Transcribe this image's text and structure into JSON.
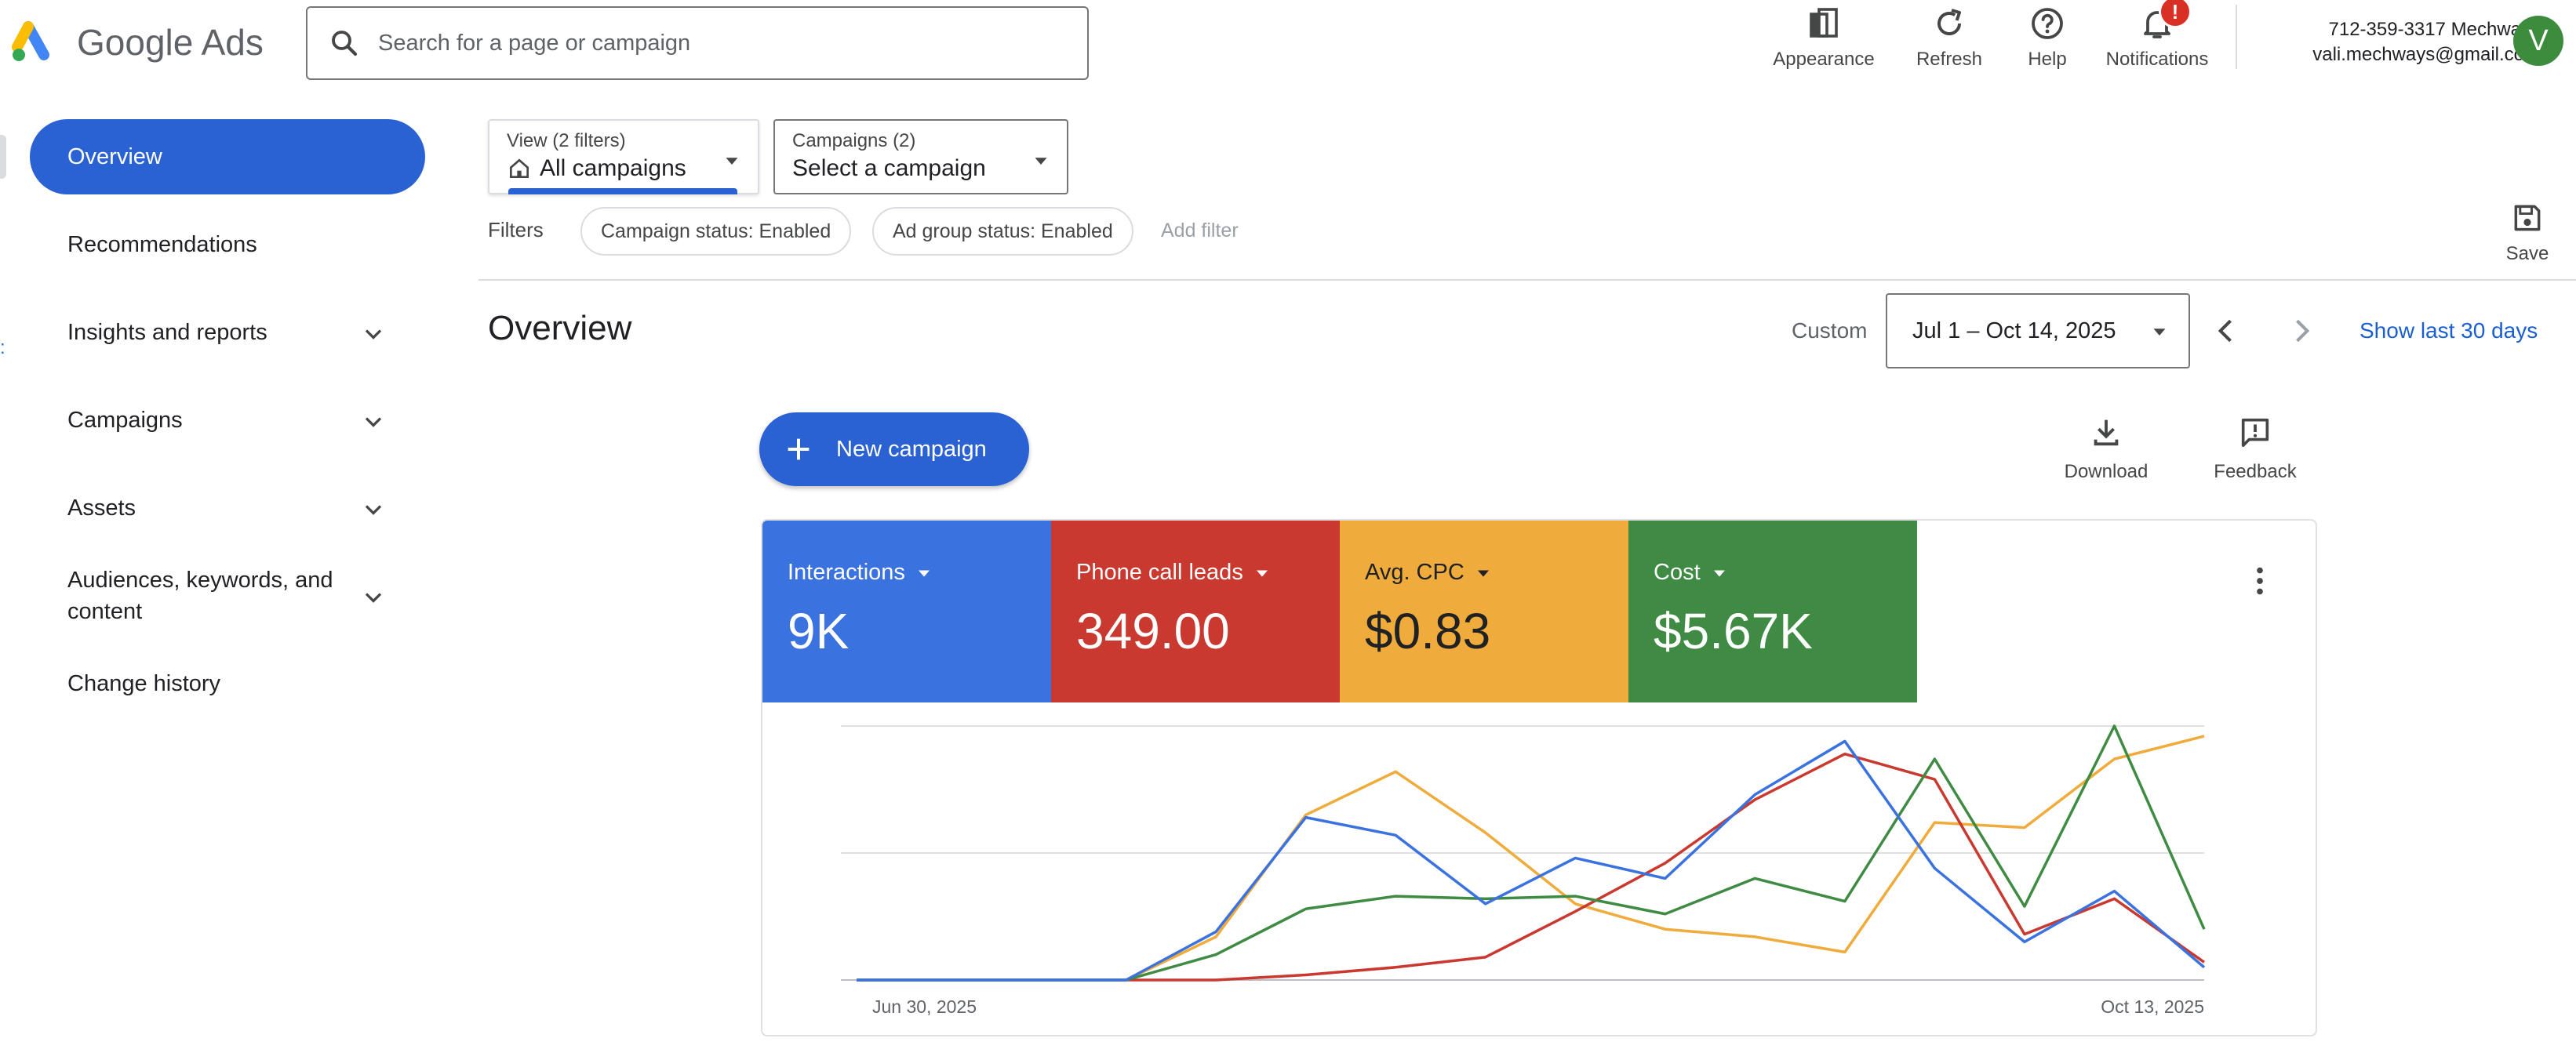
{
  "header": {
    "product_name": "Google Ads",
    "search_placeholder": "Search for a page or campaign",
    "appearance_label": "Appearance",
    "refresh_label": "Refresh",
    "help_label": "Help",
    "notifications_label": "Notifications",
    "notification_badge": "!",
    "account_name": "712-359-3317 Mechways",
    "account_email": "vali.mechways@gmail.com",
    "avatar_initial": "V"
  },
  "sidebar": {
    "items": [
      {
        "label": "Overview",
        "active": true
      },
      {
        "label": "Recommendations",
        "active": false
      },
      {
        "label": "Insights and reports",
        "active": false,
        "expandable": true
      },
      {
        "label": "Campaigns",
        "active": false,
        "expandable": true
      },
      {
        "label": "Assets",
        "active": false,
        "expandable": true
      },
      {
        "label": "Audiences, keywords, and content",
        "active": false,
        "expandable": true
      },
      {
        "label": "Change history",
        "active": false
      }
    ]
  },
  "filter_bar": {
    "view_small": "View (2 filters)",
    "view_value": "All campaigns",
    "campaigns_small": "Campaigns (2)",
    "campaigns_value": "Select a campaign",
    "filters_label": "Filters",
    "chips": [
      "Campaign status: Enabled",
      "Ad group status: Enabled"
    ],
    "add_filter": "Add filter",
    "save_label": "Save"
  },
  "overview": {
    "title": "Overview",
    "range_type": "Custom",
    "date_range": "Jul 1 – Oct 14, 2025",
    "show_last": "Show last 30 days"
  },
  "actions": {
    "new_campaign": "New campaign",
    "download": "Download",
    "feedback": "Feedback"
  },
  "metrics": [
    {
      "name": "Interactions",
      "value": "9K",
      "color": "#3a72e0"
    },
    {
      "name": "Phone call leads",
      "value": "349.00",
      "color": "#c9392f"
    },
    {
      "name": "Avg. CPC",
      "value": "$0.83",
      "color": "#efab3c"
    },
    {
      "name": "Cost",
      "value": "$5.67K",
      "color": "#3f8b43"
    }
  ],
  "chart_data": {
    "type": "line",
    "x_labels": [
      "Jun 30, 2025",
      "Oct 13, 2025"
    ],
    "ylim": [
      0,
      100
    ],
    "grid": true,
    "series": [
      {
        "color": "#3a72e0",
        "values": [
          0,
          0,
          0,
          0,
          0,
          0,
          0,
          0,
          0,
          0,
          0,
          0,
          0,
          0,
          0,
          0,
          0,
          0,
          0,
          0,
          0,
          0,
          0,
          0,
          0,
          0,
          0,
          0,
          0,
          0,
          0,
          0,
          0,
          0,
          0,
          0,
          0,
          0,
          0,
          0,
          0,
          0,
          0,
          0,
          0,
          0,
          0,
          0,
          0,
          0,
          0,
          0,
          0,
          0,
          0,
          0,
          0,
          0,
          0,
          0,
          0,
          0,
          0,
          0,
          0,
          0,
          0,
          0,
          0,
          0,
          0,
          0,
          0,
          0,
          0,
          0,
          0,
          0,
          0,
          0,
          0,
          0,
          0,
          0,
          0,
          0,
          0,
          0,
          0,
          0,
          0,
          0,
          0,
          0,
          0,
          0,
          0,
          0,
          0,
          0,
          0,
          0,
          0,
          0,
          0,
          0
        ]
      },
      {
        "color": "#c9392f",
        "values": []
      },
      {
        "color": "#efab3c",
        "values": []
      },
      {
        "color": "#3f8b43",
        "values": []
      }
    ],
    "points": {
      "blue": [
        [
          0,
          0
        ],
        [
          3,
          0
        ],
        [
          4,
          19
        ],
        [
          5,
          64
        ],
        [
          6,
          57
        ],
        [
          7,
          30
        ],
        [
          8,
          48
        ],
        [
          9,
          40
        ],
        [
          10,
          73
        ],
        [
          11,
          94
        ],
        [
          12,
          44
        ],
        [
          13,
          15
        ],
        [
          14,
          35
        ],
        [
          15,
          5
        ]
      ],
      "red": [
        [
          0,
          0
        ],
        [
          3,
          0
        ],
        [
          4,
          0
        ],
        [
          5,
          2
        ],
        [
          6,
          5
        ],
        [
          7,
          9
        ],
        [
          8,
          27
        ],
        [
          9,
          46
        ],
        [
          10,
          71
        ],
        [
          11,
          89
        ],
        [
          12,
          79
        ],
        [
          13,
          18
        ],
        [
          14,
          32
        ],
        [
          15,
          7
        ]
      ],
      "orange": [
        [
          0,
          0
        ],
        [
          3,
          0
        ],
        [
          4,
          17
        ],
        [
          5,
          65
        ],
        [
          6,
          82
        ],
        [
          7,
          58
        ],
        [
          8,
          30
        ],
        [
          9,
          20
        ],
        [
          10,
          17
        ],
        [
          11,
          11
        ],
        [
          12,
          62
        ],
        [
          13,
          60
        ],
        [
          14,
          87
        ],
        [
          15,
          96
        ]
      ],
      "green": [
        [
          0,
          0
        ],
        [
          3,
          0
        ],
        [
          4,
          10
        ],
        [
          5,
          28
        ],
        [
          6,
          33
        ],
        [
          7,
          32
        ],
        [
          8,
          33
        ],
        [
          9,
          26
        ],
        [
          10,
          40
        ],
        [
          11,
          31
        ],
        [
          12,
          87
        ],
        [
          13,
          29
        ],
        [
          14,
          100
        ],
        [
          15,
          20
        ]
      ]
    }
  }
}
